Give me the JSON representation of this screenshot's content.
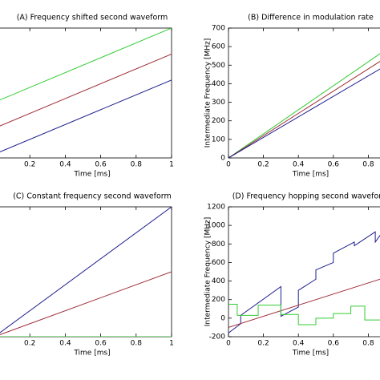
{
  "chart_data": [
    {
      "type": "line",
      "title": "(A) Frequency shifted second waveform",
      "xlabel": "Time [ms]",
      "x": [
        0,
        1
      ],
      "xlim": [
        0,
        1
      ],
      "xticks": [
        0.2,
        0.4,
        0.6,
        0.8,
        1
      ],
      "ylim": [
        0,
        700
      ],
      "series": [
        {
          "color": "#33cc33",
          "values": [
            300,
            700
          ]
        },
        {
          "color": "#a0303a",
          "values": [
            160,
            560
          ]
        },
        {
          "color": "#1f1f8f",
          "values": [
            20,
            420
          ]
        }
      ]
    },
    {
      "type": "line",
      "title": "(B) Difference in modulation rate",
      "xlabel": "Time [ms]",
      "ylabel": "Intermediate Frequency [MHz]",
      "x": [
        0,
        1
      ],
      "xlim": [
        0,
        1
      ],
      "xticks": [
        0,
        0.2,
        0.4,
        0.6,
        0.8
      ],
      "ylim": [
        0,
        700
      ],
      "yticks": [
        0,
        100,
        200,
        300,
        400,
        500,
        600,
        700
      ],
      "series": [
        {
          "color": "#33cc33",
          "values": [
            0,
            648
          ]
        },
        {
          "color": "#a0303a",
          "values": [
            0,
            600
          ]
        },
        {
          "color": "#1f1f8f",
          "values": [
            0,
            553
          ]
        }
      ]
    },
    {
      "type": "line",
      "title": "(C) Constant frequency second waveform",
      "xlabel": "Time [ms]",
      "x": [
        0,
        1
      ],
      "xlim": [
        0,
        1
      ],
      "xticks": [
        0.2,
        0.4,
        0.6,
        0.8,
        1
      ],
      "ylim": [
        0,
        700
      ],
      "series": [
        {
          "color": "#1f1f8f",
          "values": [
            0,
            700
          ]
        },
        {
          "color": "#a0303a",
          "values": [
            0,
            350
          ]
        },
        {
          "color": "#33cc33",
          "values": [
            0,
            0
          ]
        }
      ]
    },
    {
      "type": "line",
      "title": "(D) Frequency hopping second waveform",
      "xlabel": "Time [ms]",
      "ylabel": "Intermediate Frequency [MHz]",
      "xlim": [
        0,
        1
      ],
      "xticks": [
        0,
        0.2,
        0.4,
        0.6,
        0.8
      ],
      "ylim": [
        -200,
        1200
      ],
      "yticks": [
        -200,
        0,
        200,
        400,
        600,
        800,
        1000,
        1200
      ],
      "series": [
        {
          "color": "#1f1f8f",
          "x": [
            0,
            0.07,
            0.07,
            0.3,
            0.3,
            0.4,
            0.4,
            0.5,
            0.5,
            0.6,
            0.6,
            0.72,
            0.72,
            0.84,
            0.84,
            0.87
          ],
          "values": [
            -160,
            -60,
            30,
            340,
            20,
            120,
            300,
            420,
            520,
            600,
            700,
            820,
            780,
            930,
            820,
            900
          ]
        },
        {
          "color": "#a0303a",
          "x": [
            0,
            1
          ],
          "values": [
            -100,
            500
          ]
        },
        {
          "color": "#33cc33",
          "x": [
            0,
            0.05,
            0.05,
            0.17,
            0.17,
            0.3,
            0.3,
            0.4,
            0.4,
            0.5,
            0.5,
            0.6,
            0.6,
            0.7,
            0.7,
            0.78,
            0.78,
            0.87
          ],
          "values": [
            150,
            150,
            30,
            30,
            140,
            140,
            40,
            40,
            -70,
            -70,
            0,
            0,
            50,
            50,
            130,
            130,
            -20,
            -20
          ]
        }
      ]
    }
  ]
}
